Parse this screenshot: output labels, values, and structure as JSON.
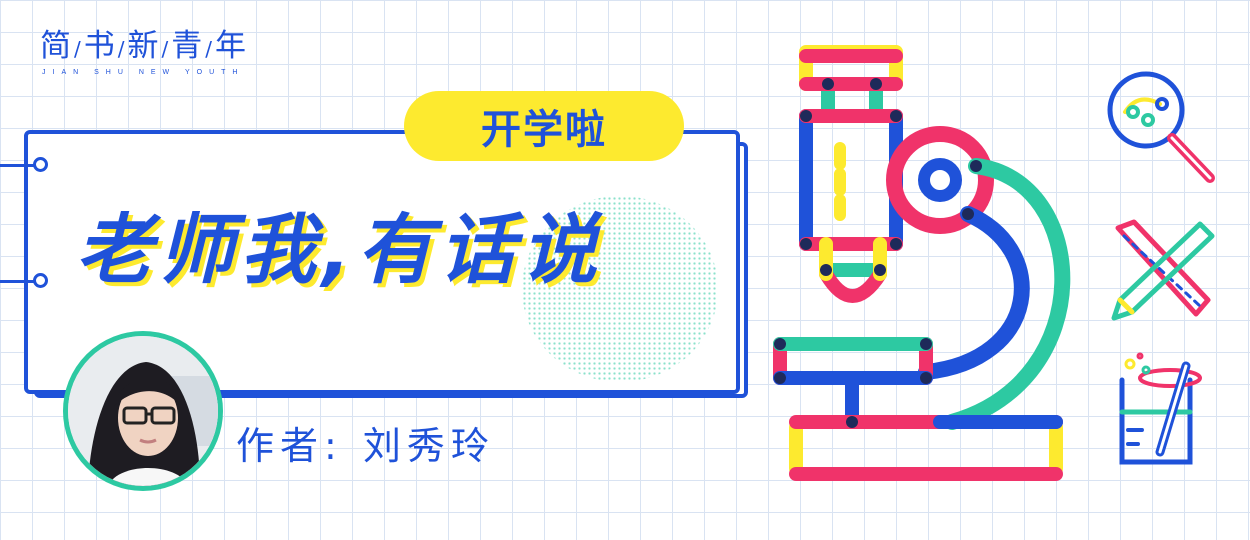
{
  "brand": {
    "chinese": [
      "简",
      "书",
      "新",
      "青",
      "年"
    ],
    "english": "JIAN SHU NEW YOUTH"
  },
  "badge": {
    "label": "开学啦"
  },
  "headline": {
    "text": "老师我,有话说"
  },
  "author": {
    "label": "作者:",
    "name": "刘秀玲"
  },
  "colors": {
    "brand_blue": "#1f52d9",
    "accent_yellow": "#fdea2f",
    "accent_pink": "#f0336a",
    "accent_teal": "#2dc9a2",
    "navy": "#1e2a5a"
  },
  "icons": [
    "microscope-icon",
    "magnifier-icon",
    "pencil-ruler-cross-icon",
    "beaker-icon"
  ]
}
